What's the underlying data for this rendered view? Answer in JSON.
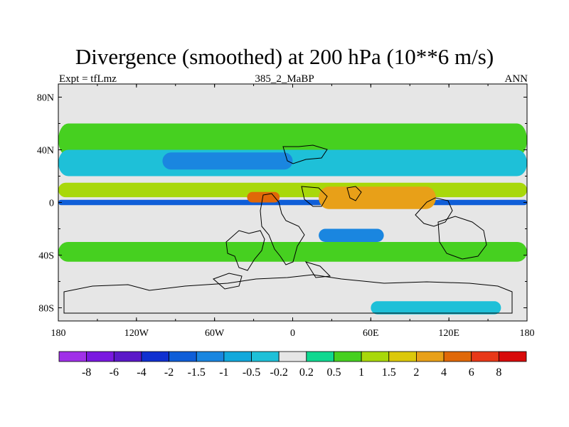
{
  "title": "Divergence (smoothed) at 200 hPa (10**6 m/s)",
  "subtitle_left": "Expt = tfLmz",
  "subtitle_center": "385_2_MaBP",
  "subtitle_right": "ANN",
  "chart_data": {
    "type": "heatmap",
    "map_type": "global cylindrical-equidistant contour map",
    "variable": "Divergence (smoothed) at 200 hPa",
    "units": "10**6 m/s",
    "x_range": [
      -180,
      180
    ],
    "y_range": [
      -90,
      90
    ],
    "x_ticks": [
      {
        "value": -180,
        "label": "180"
      },
      {
        "value": -120,
        "label": "120W"
      },
      {
        "value": -60,
        "label": "60W"
      },
      {
        "value": 0,
        "label": "0"
      },
      {
        "value": 60,
        "label": "60E"
      },
      {
        "value": 120,
        "label": "120E"
      },
      {
        "value": 180,
        "label": "180"
      }
    ],
    "y_ticks": [
      {
        "value": 80,
        "label": "80N"
      },
      {
        "value": 40,
        "label": "40N"
      },
      {
        "value": 0,
        "label": "0"
      },
      {
        "value": -40,
        "label": "40S"
      },
      {
        "value": -80,
        "label": "80S"
      }
    ],
    "contour_levels": [
      {
        "value": -8,
        "label": "-8"
      },
      {
        "value": -6,
        "label": "-6"
      },
      {
        "value": -4,
        "label": "-4"
      },
      {
        "value": -2,
        "label": "-2"
      },
      {
        "value": -1.5,
        "label": "-1.5"
      },
      {
        "value": -1,
        "label": "-1"
      },
      {
        "value": -0.5,
        "label": "-0.5"
      },
      {
        "value": -0.2,
        "label": "-0.2"
      },
      {
        "value": 0.2,
        "label": "0.2"
      },
      {
        "value": 0.5,
        "label": "0.5"
      },
      {
        "value": 1,
        "label": "1"
      },
      {
        "value": 1.5,
        "label": "1.5"
      },
      {
        "value": 2,
        "label": "2"
      },
      {
        "value": 4,
        "label": "4"
      },
      {
        "value": 6,
        "label": "6"
      },
      {
        "value": 8,
        "label": "8"
      }
    ],
    "colorbar_colors": [
      "#a030e8",
      "#7a18e0",
      "#5b18c8",
      "#1030d0",
      "#0f5ed8",
      "#1a86e0",
      "#12a8dc",
      "#1ec0d8",
      "#e6e6e6",
      "#10d890",
      "#46d020",
      "#a8d80a",
      "#dcc80a",
      "#e8a018",
      "#e06808",
      "#e83818",
      "#d80a0a"
    ],
    "background_color": "#e6e6e6",
    "regions": [
      {
        "feature": "mid-latitude band (NH)",
        "lon": [
          -180,
          180
        ],
        "lat": [
          35,
          60
        ],
        "value": 0.5
      },
      {
        "feature": "NH subtropical convergence",
        "lon": [
          -180,
          180
        ],
        "lat": [
          20,
          40
        ],
        "value": -0.5
      },
      {
        "feature": "NH jet core convergence",
        "lon": [
          -100,
          0
        ],
        "lat": [
          25,
          38
        ],
        "value": -1.5
      },
      {
        "feature": "tropical divergence band (NH)",
        "lon": [
          -180,
          180
        ],
        "lat": [
          4,
          15
        ],
        "value": 1.0
      },
      {
        "feature": "equatorial convergence strip",
        "lon": [
          -180,
          180
        ],
        "lat": [
          -2,
          2
        ],
        "value": -2.0
      },
      {
        "feature": "Africa-Asia upper divergence",
        "lon": [
          20,
          110
        ],
        "lat": [
          -5,
          12
        ],
        "value": 2.0
      },
      {
        "feature": "tropical Atlantic divergence max",
        "lon": [
          -35,
          -10
        ],
        "lat": [
          0,
          8
        ],
        "value": 4.0
      },
      {
        "feature": "Indian Ocean convergence",
        "lon": [
          20,
          70
        ],
        "lat": [
          -30,
          -20
        ],
        "value": -1.5
      },
      {
        "feature": "southern subtropical band",
        "lon": [
          -180,
          180
        ],
        "lat": [
          -45,
          -30
        ],
        "value": 0.5
      },
      {
        "feature": "Antarctic coastal band",
        "lon": [
          60,
          160
        ],
        "lat": [
          -85,
          -75
        ],
        "value": -0.5
      }
    ]
  },
  "colorbar_legend": [
    "-8",
    "-6",
    "-4",
    "-2",
    "-1.5",
    "-1",
    "-0.5",
    "-0.2",
    "0.2",
    "0.5",
    "1",
    "1.5",
    "2",
    "4",
    "6",
    "8"
  ]
}
